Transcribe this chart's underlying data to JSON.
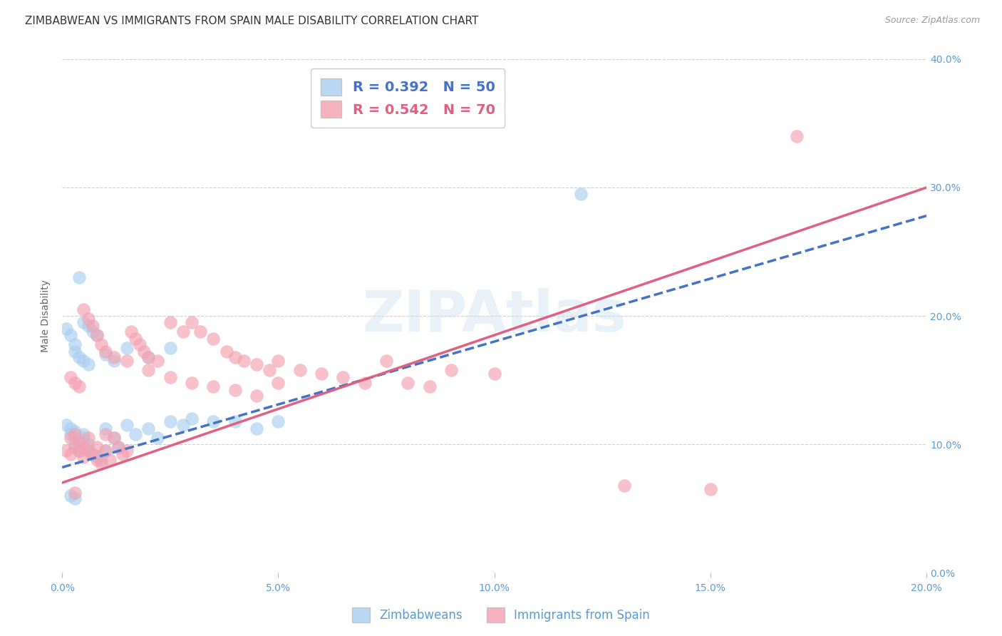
{
  "title": "ZIMBABWEAN VS IMMIGRANTS FROM SPAIN MALE DISABILITY CORRELATION CHART",
  "source": "Source: ZipAtlas.com",
  "ylabel": "Male Disability",
  "watermark": "ZIPAtlas",
  "xlim": [
    0.0,
    0.2
  ],
  "ylim": [
    0.0,
    0.4
  ],
  "xticks": [
    0.0,
    0.05,
    0.1,
    0.15,
    0.2
  ],
  "yticks": [
    0.0,
    0.1,
    0.2,
    0.3,
    0.4
  ],
  "xtick_labels": [
    "0.0%",
    "5.0%",
    "10.0%",
    "15.0%",
    "20.0%"
  ],
  "ytick_labels": [
    "0.0%",
    "10.0%",
    "20.0%",
    "30.0%",
    "40.0%"
  ],
  "blue_color": "#a8cff0",
  "pink_color": "#f4a0b0",
  "blue_line_color": "#4472c4",
  "pink_line_color": "#e06080",
  "axis_label_color": "#5b9bd5",
  "grid_color": "#d0d0d0",
  "background_color": "#ffffff",
  "title_fontsize": 11,
  "axis_label_fontsize": 10,
  "tick_fontsize": 10,
  "legend_R_blue": "R = 0.392",
  "legend_N_blue": "N = 50",
  "legend_R_pink": "R = 0.542",
  "legend_N_pink": "N = 70",
  "blue_scatter_x": [
    0.001,
    0.002,
    0.002,
    0.003,
    0.003,
    0.003,
    0.004,
    0.004,
    0.005,
    0.005,
    0.006,
    0.006,
    0.007,
    0.008,
    0.009,
    0.01,
    0.01,
    0.012,
    0.013,
    0.015,
    0.017,
    0.02,
    0.022,
    0.025,
    0.028,
    0.03,
    0.035,
    0.04,
    0.045,
    0.05,
    0.001,
    0.002,
    0.003,
    0.004,
    0.005,
    0.006,
    0.007,
    0.008,
    0.003,
    0.004,
    0.005,
    0.006,
    0.01,
    0.012,
    0.015,
    0.02,
    0.025,
    0.12,
    0.002,
    0.003
  ],
  "blue_scatter_y": [
    0.115,
    0.108,
    0.112,
    0.105,
    0.1,
    0.11,
    0.095,
    0.098,
    0.108,
    0.105,
    0.095,
    0.1,
    0.092,
    0.09,
    0.088,
    0.112,
    0.095,
    0.105,
    0.098,
    0.115,
    0.108,
    0.112,
    0.105,
    0.118,
    0.115,
    0.12,
    0.118,
    0.118,
    0.112,
    0.118,
    0.19,
    0.185,
    0.178,
    0.23,
    0.195,
    0.192,
    0.188,
    0.185,
    0.172,
    0.168,
    0.165,
    0.162,
    0.17,
    0.165,
    0.175,
    0.168,
    0.175,
    0.295,
    0.06,
    0.058
  ],
  "pink_scatter_x": [
    0.001,
    0.002,
    0.002,
    0.003,
    0.003,
    0.004,
    0.004,
    0.005,
    0.005,
    0.006,
    0.006,
    0.007,
    0.008,
    0.008,
    0.009,
    0.01,
    0.01,
    0.011,
    0.012,
    0.013,
    0.014,
    0.015,
    0.016,
    0.017,
    0.018,
    0.019,
    0.02,
    0.022,
    0.025,
    0.028,
    0.03,
    0.032,
    0.035,
    0.038,
    0.04,
    0.042,
    0.045,
    0.048,
    0.05,
    0.055,
    0.06,
    0.065,
    0.07,
    0.075,
    0.08,
    0.085,
    0.09,
    0.1,
    0.002,
    0.003,
    0.004,
    0.005,
    0.006,
    0.007,
    0.008,
    0.009,
    0.01,
    0.012,
    0.015,
    0.02,
    0.025,
    0.03,
    0.035,
    0.04,
    0.045,
    0.05,
    0.17,
    0.003,
    0.15,
    0.13
  ],
  "pink_scatter_y": [
    0.095,
    0.092,
    0.105,
    0.098,
    0.108,
    0.095,
    0.102,
    0.09,
    0.098,
    0.105,
    0.095,
    0.092,
    0.088,
    0.098,
    0.085,
    0.095,
    0.108,
    0.088,
    0.105,
    0.098,
    0.092,
    0.095,
    0.188,
    0.182,
    0.178,
    0.172,
    0.168,
    0.165,
    0.195,
    0.188,
    0.195,
    0.188,
    0.182,
    0.172,
    0.168,
    0.165,
    0.162,
    0.158,
    0.165,
    0.158,
    0.155,
    0.152,
    0.148,
    0.165,
    0.148,
    0.145,
    0.158,
    0.155,
    0.152,
    0.148,
    0.145,
    0.205,
    0.198,
    0.192,
    0.185,
    0.178,
    0.172,
    0.168,
    0.165,
    0.158,
    0.152,
    0.148,
    0.145,
    0.142,
    0.138,
    0.148,
    0.34,
    0.062,
    0.065,
    0.068
  ]
}
